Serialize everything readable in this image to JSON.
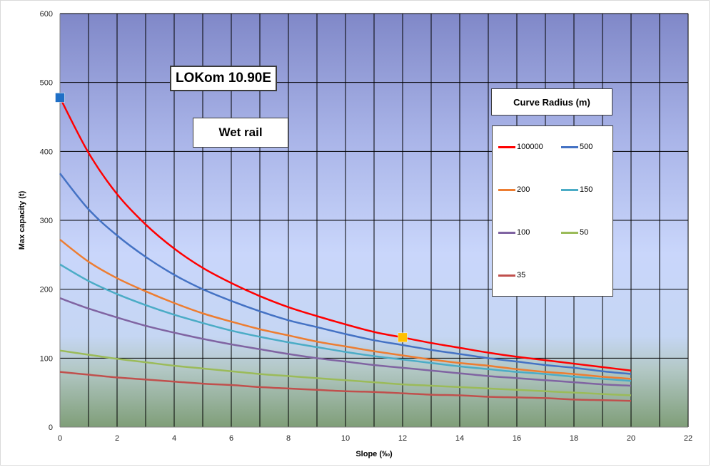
{
  "chart_data": {
    "type": "line",
    "title": "LOKom 10.90E",
    "subtitle": "Wet rail",
    "xlabel": "Slope (‰)",
    "ylabel": "Max capacity (t)",
    "xlim": [
      0,
      22
    ],
    "ylim": [
      0,
      600
    ],
    "x_ticks": [
      0,
      2,
      4,
      6,
      8,
      10,
      12,
      14,
      16,
      18,
      20,
      22
    ],
    "y_ticks": [
      0,
      100,
      200,
      300,
      400,
      500,
      600
    ],
    "grid": true,
    "legend_title": "Curve Radius (m)",
    "legend_position": "right",
    "x": [
      0,
      1,
      2,
      3,
      4,
      5,
      6,
      7,
      8,
      9,
      10,
      11,
      12,
      13,
      14,
      15,
      16,
      17,
      18,
      19,
      20
    ],
    "series": [
      {
        "name": "100000",
        "color": "#ff0000",
        "values": [
          478,
          398,
          338,
          294,
          259,
          231,
          209,
          190,
          174,
          161,
          149,
          138,
          130,
          122,
          115,
          108,
          102,
          97,
          92,
          87,
          82
        ]
      },
      {
        "name": "500",
        "color": "#4472c4",
        "values": [
          368,
          316,
          278,
          247,
          221,
          200,
          183,
          168,
          155,
          145,
          135,
          126,
          119,
          112,
          106,
          100,
          95,
          90,
          86,
          81,
          77
        ]
      },
      {
        "name": "200",
        "color": "#ed7d31",
        "values": [
          272,
          240,
          216,
          197,
          180,
          165,
          153,
          142,
          133,
          124,
          117,
          110,
          104,
          98,
          93,
          89,
          84,
          80,
          77,
          73,
          70
        ]
      },
      {
        "name": "150",
        "color": "#4bacc6",
        "values": [
          236,
          212,
          193,
          177,
          163,
          151,
          140,
          131,
          123,
          116,
          109,
          103,
          98,
          93,
          88,
          84,
          80,
          77,
          73,
          70,
          67
        ]
      },
      {
        "name": "100",
        "color": "#8064a2",
        "values": [
          187,
          172,
          159,
          147,
          137,
          128,
          120,
          113,
          106,
          100,
          95,
          90,
          86,
          82,
          78,
          74,
          71,
          68,
          65,
          62,
          60
        ]
      },
      {
        "name": "50",
        "color": "#9bbb59",
        "values": [
          111,
          105,
          99,
          94,
          89,
          85,
          81,
          77,
          74,
          71,
          68,
          65,
          62,
          60,
          58,
          56,
          54,
          52,
          50,
          48,
          46
        ]
      },
      {
        "name": "35",
        "color": "#c0504d",
        "values": [
          80,
          76,
          72,
          69,
          66,
          63,
          61,
          58,
          56,
          54,
          52,
          51,
          49,
          47,
          46,
          44,
          43,
          42,
          40,
          39,
          38
        ]
      }
    ],
    "markers": [
      {
        "x": 0,
        "y": 478,
        "color": "#1f6fc6",
        "shape": "square"
      },
      {
        "x": 12,
        "y": 130,
        "color": "#ffc000",
        "shape": "square"
      }
    ]
  }
}
